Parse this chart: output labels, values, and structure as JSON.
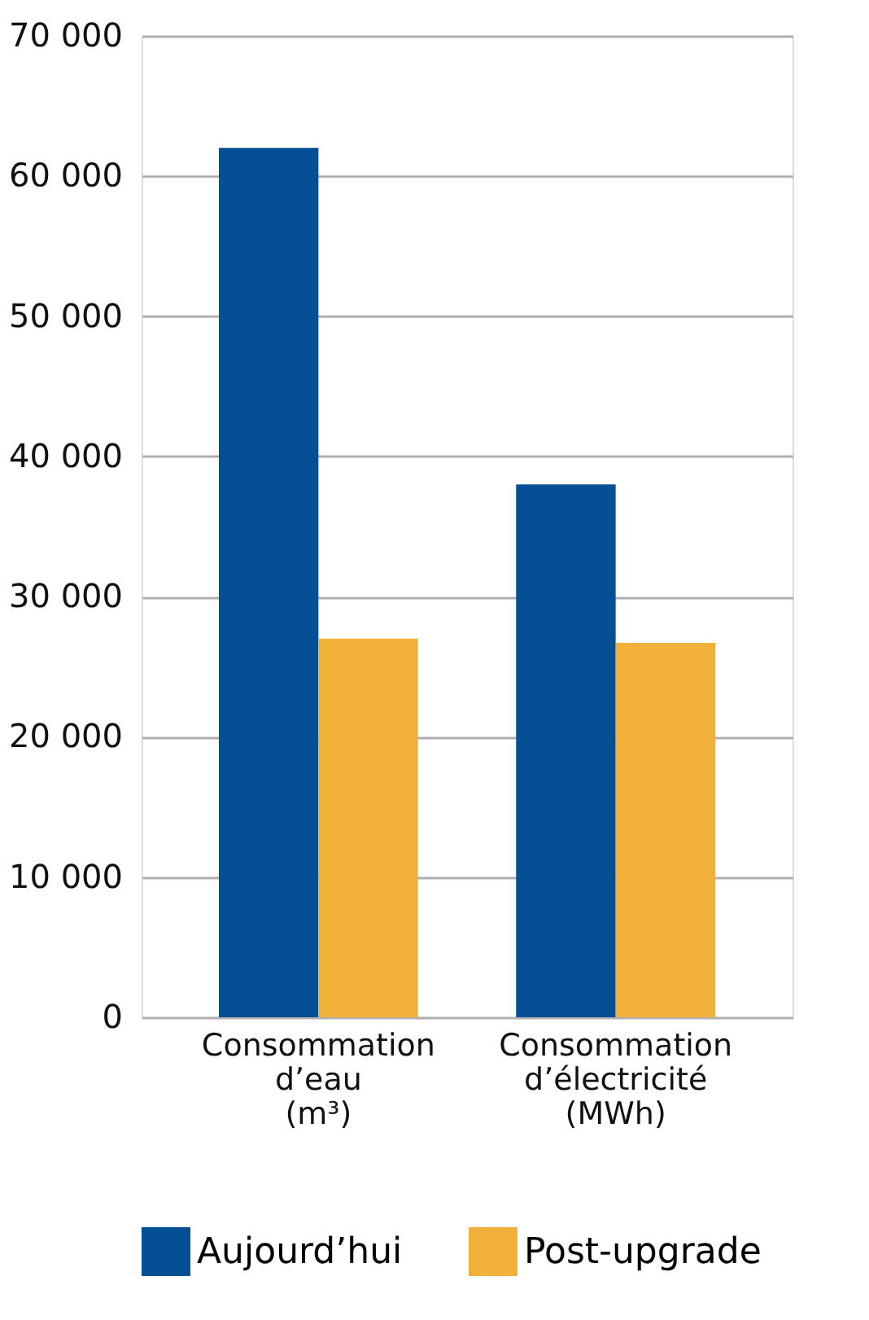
{
  "chart_data": {
    "type": "bar",
    "categories": [
      "Consommation\nd’eau\n(m³)",
      "Consommation\nd’électricité\n(MWh)"
    ],
    "series": [
      {
        "name": "Aujourd’hui",
        "color": "#054f94",
        "values": [
          62000,
          38000
        ]
      },
      {
        "name": "Post-upgrade",
        "color": "#f0b03a",
        "values": [
          27000,
          26700
        ]
      }
    ],
    "ylim": [
      0,
      70000
    ],
    "yticks": [
      0,
      {
        "value": 10000,
        "label": "10 000"
      },
      {
        "value": 20000,
        "label": "20 000"
      },
      {
        "value": 30000,
        "label": "30 000"
      },
      {
        "value": 40000,
        "label": "40 000"
      },
      {
        "value": 50000,
        "label": "50 000"
      },
      {
        "value": 60000,
        "label": "60 000"
      },
      {
        "value": 70000,
        "label": "70 000"
      }
    ],
    "grid": "y",
    "legend": "bottom"
  }
}
